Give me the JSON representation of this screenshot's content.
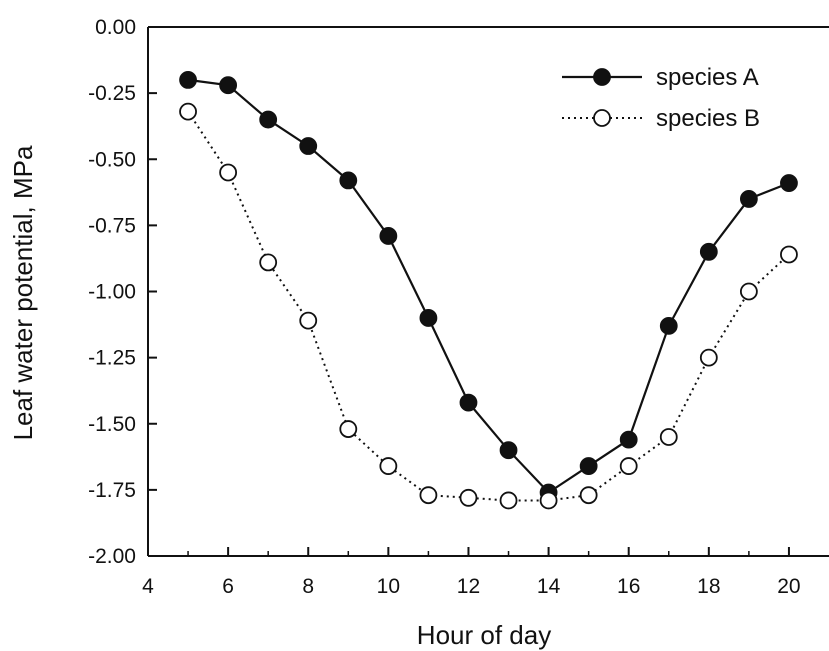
{
  "chart_data": {
    "type": "line",
    "title": "",
    "xlabel": "Hour of day",
    "ylabel": "Leaf water potential, MPa",
    "xlim": [
      4,
      21
    ],
    "ylim": [
      -2.0,
      0.0
    ],
    "xticks": [
      4,
      6,
      8,
      10,
      12,
      14,
      16,
      18,
      20
    ],
    "xtick_labels": [
      "4",
      "6",
      "8",
      "10",
      "12",
      "14",
      "16",
      "18",
      "20"
    ],
    "yticks": [
      0.0,
      -0.25,
      -0.5,
      -0.75,
      -1.0,
      -1.25,
      -1.5,
      -1.75,
      -2.0
    ],
    "ytick_labels": [
      "0.00",
      "-0.25",
      "-0.50",
      "-0.75",
      "-1.00",
      "-1.25",
      "-1.50",
      "-1.75",
      "-2.00"
    ],
    "grid": false,
    "legend_position": "top-right",
    "x": [
      5,
      6,
      7,
      8,
      9,
      10,
      11,
      12,
      13,
      14,
      15,
      16,
      17,
      18,
      19,
      20
    ],
    "series": [
      {
        "name": "species A",
        "marker": "filled-circle",
        "line": "solid",
        "color": "#111111",
        "values": [
          -0.2,
          -0.22,
          -0.35,
          -0.45,
          -0.58,
          -0.79,
          -1.1,
          -1.42,
          -1.6,
          -1.76,
          -1.66,
          -1.56,
          -1.13,
          -0.85,
          -0.65,
          -0.59
        ]
      },
      {
        "name": "species B",
        "marker": "open-circle",
        "line": "dotted",
        "color": "#111111",
        "values": [
          -0.32,
          -0.55,
          -0.89,
          -1.11,
          -1.52,
          -1.66,
          -1.77,
          -1.78,
          -1.79,
          -1.79,
          -1.77,
          -1.66,
          -1.55,
          -1.25,
          -1.0,
          -0.86
        ]
      }
    ]
  }
}
